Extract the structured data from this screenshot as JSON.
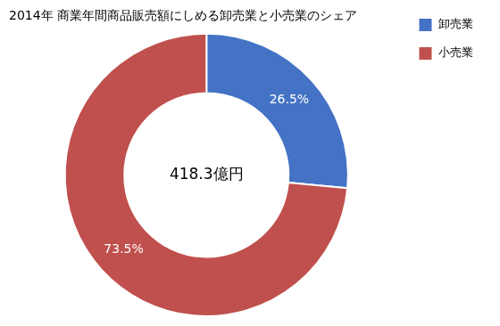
{
  "chart_data": {
    "type": "doughnut",
    "title": "2014年 商業年間商品販売額にしめる卸売業と小売業のシェア",
    "categories": [
      "卸売業",
      "小売業"
    ],
    "values": [
      26.5,
      73.5
    ],
    "value_labels": [
      "26.5%",
      "73.5%"
    ],
    "colors": [
      "#4472C4",
      "#C0504D"
    ],
    "data_labels": true,
    "annotation": "418.3億円",
    "legend": "upper right"
  }
}
